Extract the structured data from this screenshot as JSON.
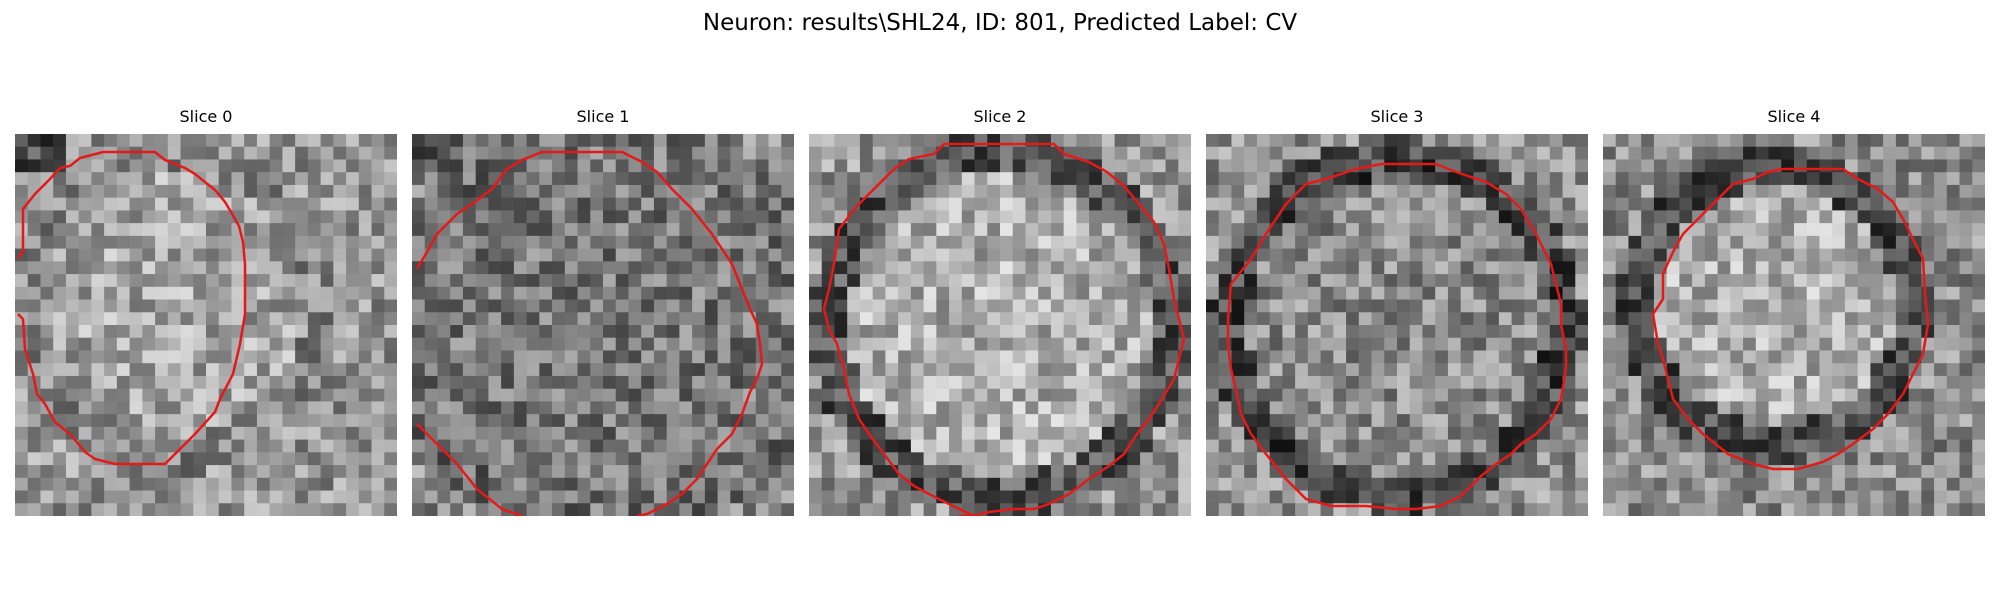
{
  "figure": {
    "title": "Neuron: results\\SHL24, ID: 801, Predicted Label: CV",
    "contour_color": "#e61919"
  },
  "slices": [
    {
      "title": "Slice 0"
    },
    {
      "title": "Slice 1"
    },
    {
      "title": "Slice 2"
    },
    {
      "title": "Slice 3"
    },
    {
      "title": "Slice 4"
    }
  ]
}
